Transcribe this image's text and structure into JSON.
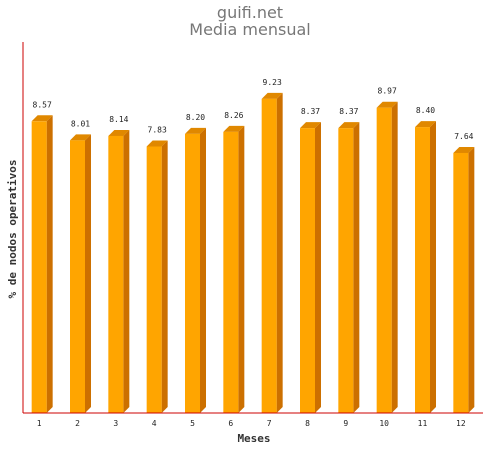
{
  "chart_data": {
    "type": "bar",
    "title": "guifi.net",
    "subtitle": "Media mensual",
    "xlabel": "Meses",
    "ylabel": "% de nodos operativos",
    "categories": [
      "1",
      "2",
      "3",
      "4",
      "5",
      "6",
      "7",
      "8",
      "9",
      "10",
      "11",
      "12"
    ],
    "values": [
      8.57,
      8.01,
      8.14,
      7.83,
      8.2,
      8.26,
      9.23,
      8.37,
      8.37,
      8.97,
      8.4,
      7.64
    ],
    "value_labels": [
      "8.57",
      "8.01",
      "8.14",
      "7.83",
      "8.20",
      "8.26",
      "9.23",
      "8.37",
      "8.37",
      "8.97",
      "8.40",
      "7.64"
    ],
    "ylim": [
      0,
      10.9
    ],
    "grid": false,
    "colors": {
      "bar_front": "#FFA500",
      "bar_side": "#CC7000",
      "bar_top": "#E08800",
      "axis": "#CC0000"
    }
  }
}
